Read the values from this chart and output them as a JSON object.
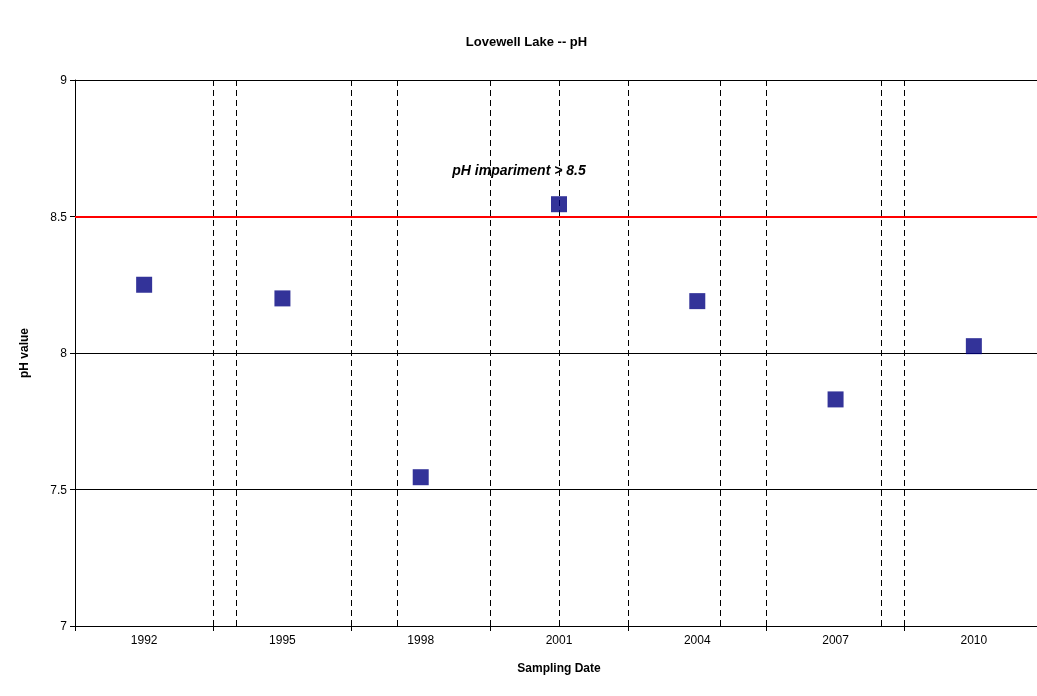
{
  "chart_data": {
    "type": "scatter",
    "title": "Lovewell Lake -- pH",
    "xlabel": "Sampling Date",
    "ylabel": "pH value",
    "categories": [
      "1992",
      "1995",
      "1998",
      "2001",
      "2004",
      "2007",
      "2010"
    ],
    "values": [
      8.25,
      8.2,
      7.545,
      8.545,
      8.19,
      7.83,
      8.025
    ],
    "color": "#000080",
    "marker": "square",
    "ylim": [
      7,
      9
    ],
    "yticks": [
      7,
      7.5,
      8,
      8.5,
      9
    ],
    "grid": true,
    "ref_lines": [
      {
        "axis": "y",
        "value": 8.5,
        "label": "pH impariment > 8.5",
        "color": "#ff0000",
        "line_style": "solid"
      }
    ]
  }
}
